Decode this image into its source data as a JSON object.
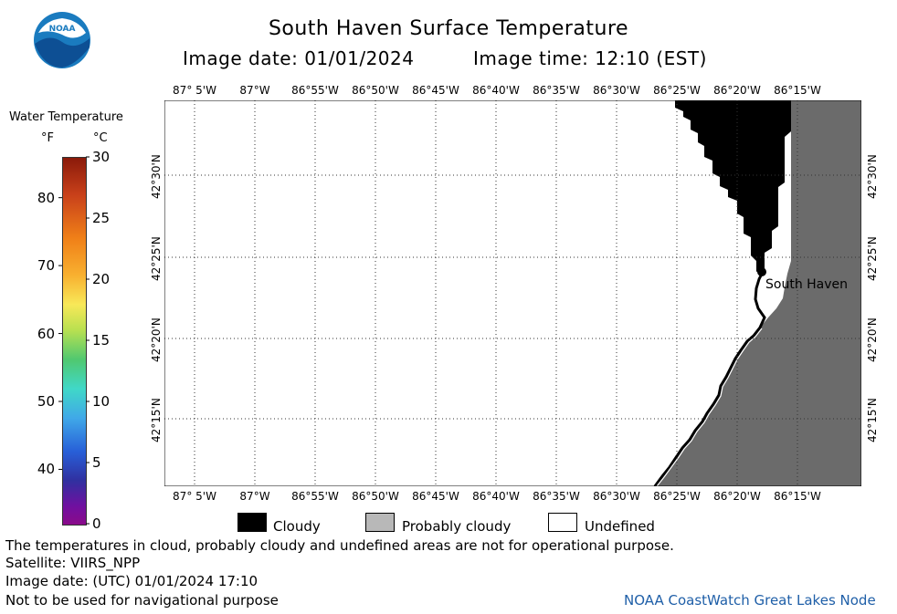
{
  "header": {
    "title": "South Haven Surface Temperature",
    "image_date_label": "Image date: 01/01/2024",
    "image_time_label": "Image time: 12:10 (EST)"
  },
  "logo": {
    "text": "NOAA",
    "color": "#1a7bbf"
  },
  "colorbar": {
    "title": "Water Temperature",
    "unit_f": "°F",
    "unit_c": "°C",
    "f_ticks": [
      "80",
      "70",
      "60",
      "50",
      "40"
    ],
    "c_ticks": [
      "30",
      "25",
      "20",
      "15",
      "10",
      "5",
      "0"
    ]
  },
  "map": {
    "lon_labels": [
      "87° 5'W",
      "87°W",
      "86°55'W",
      "86°50'W",
      "86°45'W",
      "86°40'W",
      "86°35'W",
      "86°30'W",
      "86°25'W",
      "86°20'W",
      "86°15'W"
    ],
    "lat_labels": [
      "42°30'N",
      "42°25'N",
      "42°20'N",
      "42°15'N"
    ],
    "place_label": "South Haven",
    "colors": {
      "land": "#6b6b6b",
      "cloud": "#000000",
      "water": "#ffffff",
      "grid": "#333333"
    }
  },
  "legend": {
    "cloudy": "Cloudy",
    "probably_cloudy": "Probably cloudy",
    "undefined": "Undefined",
    "colors": {
      "cloudy": "#000000",
      "probably_cloudy": "#b8b8b8",
      "undefined": "#ffffff"
    }
  },
  "footer": {
    "disclaimer": "The temperatures in cloud, probably cloudy and undefined areas are not for operational purpose.",
    "satellite": "Satellite: VIIRS_NPP",
    "utc_date": "Image date: (UTC) 01/01/2024  17:10",
    "nav_warning": "Not to be used for navigational purpose",
    "credit": "NOAA CoastWatch Great Lakes Node",
    "credit_color": "#1f5fa8"
  }
}
